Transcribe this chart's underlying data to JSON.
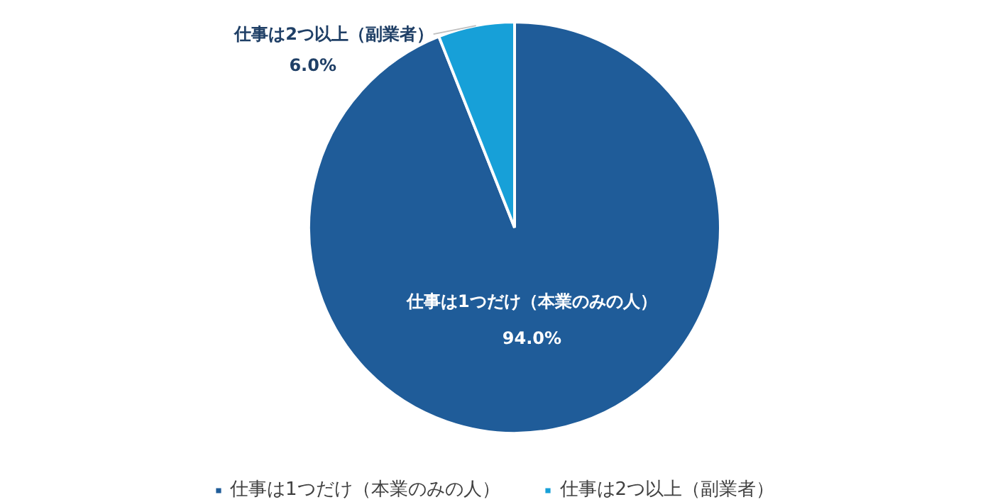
{
  "chart_data": {
    "type": "pie",
    "categories": [
      "仕事は1つだけ（本業のみの人）",
      "仕事は2つ以上（副業者）"
    ],
    "values": [
      94.0,
      6.0
    ],
    "colors": [
      "#1f5c99",
      "#17a0d8"
    ],
    "value_labels": [
      "94.0%",
      "6.0%"
    ],
    "legend": "bottom"
  }
}
